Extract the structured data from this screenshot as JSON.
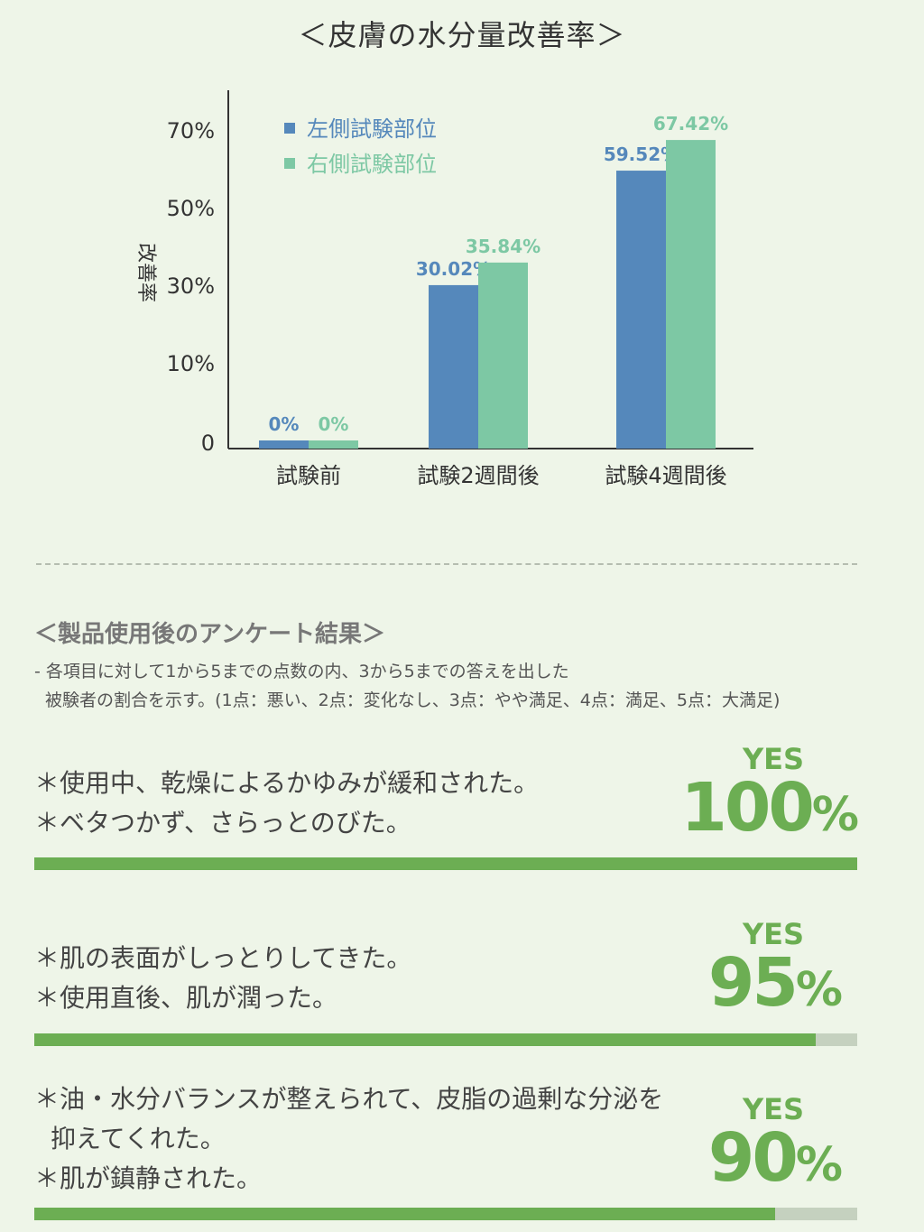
{
  "chart_data": {
    "type": "bar",
    "title": "＜皮膚の水分量改善率＞",
    "ylabel": "改善率",
    "ylim": [
      0,
      70
    ],
    "yticks": [
      {
        "value": 0,
        "label": "0"
      },
      {
        "value": 10,
        "label": "10%"
      },
      {
        "value": 30,
        "label": "30%"
      },
      {
        "value": 50,
        "label": "50%"
      },
      {
        "value": 70,
        "label": "70%"
      }
    ],
    "categories": [
      "試験前",
      "試験2週間後",
      "試験4週間後"
    ],
    "series": [
      {
        "name": "左側試験部位",
        "color": "#5588bb",
        "values": [
          0,
          30.02,
          59.52
        ],
        "labels": [
          "0%",
          "30.02%",
          "59.52%"
        ]
      },
      {
        "name": "右側試験部位",
        "color": "#7dc8a4",
        "values": [
          0,
          35.84,
          67.42
        ],
        "labels": [
          "0%",
          "35.84%",
          "67.42%"
        ]
      }
    ],
    "legend_position": "top-left"
  },
  "survey": {
    "title": "＜製品使用後のアンケート結果＞",
    "note_lines": [
      "- 各項目に対して1から5までの点数の内、3から5までの答えを出した",
      "被験者の割合を示す。(1点：悪い、2点：変化なし、3点：やや満足、4点：満足、5点：大満足)"
    ],
    "items": [
      {
        "lines": [
          "＊使用中、乾燥によるかゆみが緩和された。",
          "＊ベタつかず、さらっとのびた。"
        ],
        "yes": "YES",
        "percent_value": "100",
        "percent_sign": "%",
        "fill": 1.0
      },
      {
        "lines": [
          "＊肌の表面がしっとりしてきた。",
          "＊使用直後、肌が潤った。"
        ],
        "yes": "YES",
        "percent_value": "95",
        "percent_sign": "%",
        "fill": 0.95
      },
      {
        "lines": [
          "＊油・水分バランスが整えられて、皮脂の過剰な分泌を",
          "抑えてくれた。",
          "＊肌が鎮静された。"
        ],
        "yes": "YES",
        "percent_value": "90",
        "percent_sign": "%",
        "fill": 0.9
      }
    ]
  },
  "colors": {
    "background": "#eef5e8",
    "accent": "#6cae53",
    "track": "#c5d1bf"
  }
}
